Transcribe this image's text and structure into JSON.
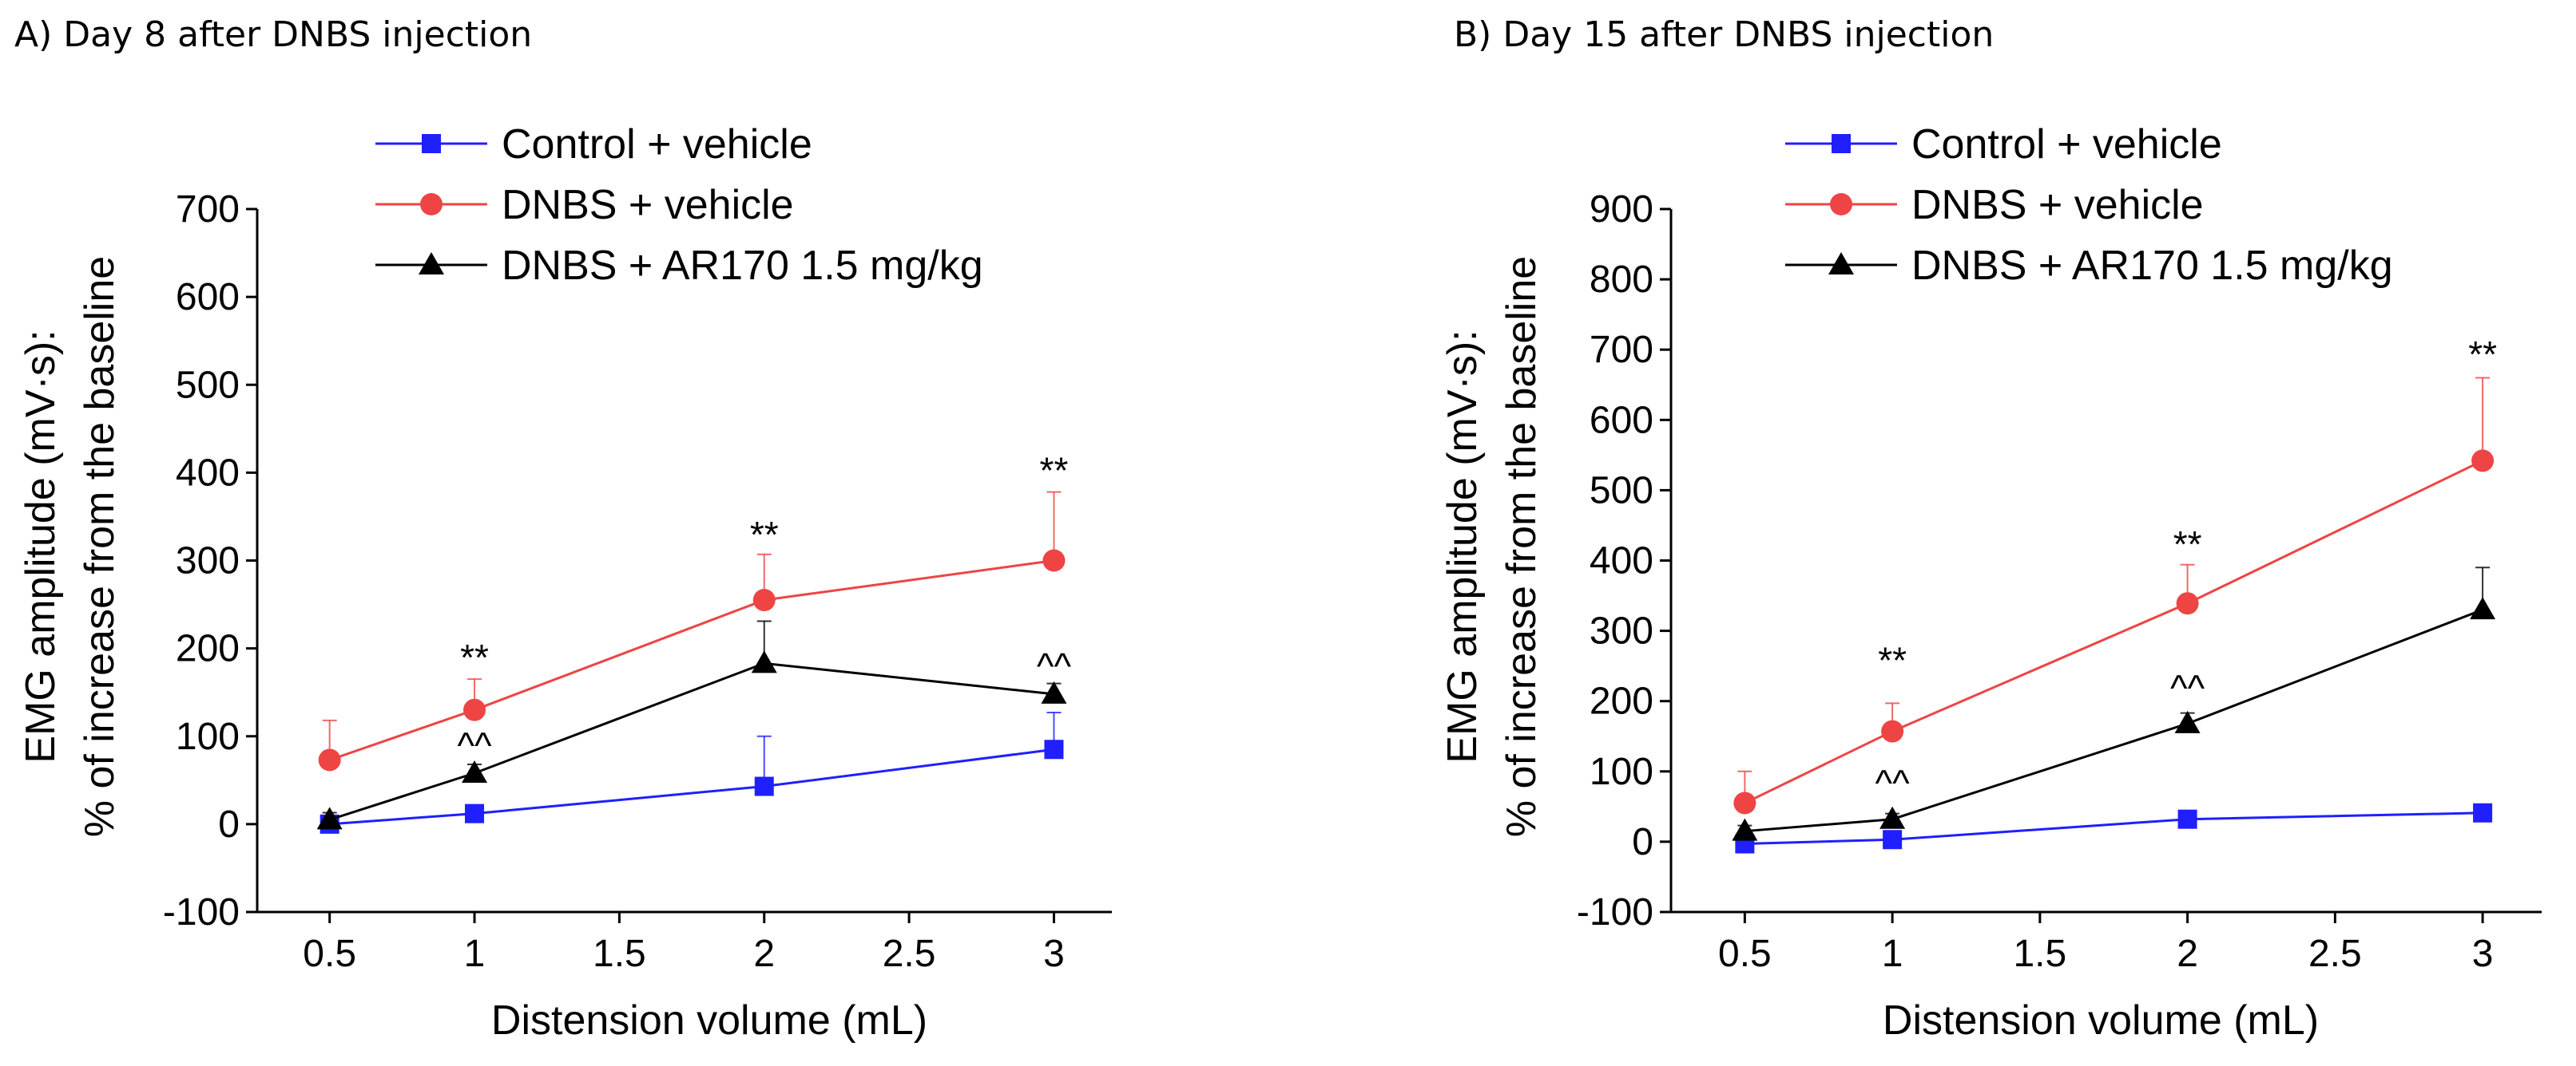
{
  "chart_data": [
    {
      "type": "line",
      "title": "A) Day 8 after DNBS injection",
      "xlabel": "Distension volume (mL)",
      "ylabel": "EMG amplitude (mV·s):",
      "ylabel2": "% of increase from the baseline",
      "x": [
        0.5,
        1,
        2,
        3
      ],
      "xticks": [
        "0.5",
        "1",
        "1.5",
        "2",
        "2.5",
        "3"
      ],
      "xtick_values": [
        0.5,
        1,
        1.5,
        2,
        2.5,
        3
      ],
      "xlim": [
        0.25,
        3.2
      ],
      "ylim": [
        -100,
        700
      ],
      "yticks": [
        "-100",
        "0",
        "100",
        "200",
        "300",
        "400",
        "500",
        "600",
        "700"
      ],
      "ytick_values": [
        -100,
        0,
        100,
        200,
        300,
        400,
        500,
        600,
        700
      ],
      "legend_position": "top",
      "series": [
        {
          "name": "Control + vehicle",
          "color": "#1f1fff",
          "marker": "square",
          "values": [
            0,
            12,
            43,
            85
          ],
          "errors": [
            5,
            5,
            57,
            42
          ]
        },
        {
          "name": "DNBS + vehicle",
          "color": "#ee4444",
          "marker": "circle",
          "values": [
            73,
            130,
            255,
            300
          ],
          "errors": [
            45,
            35,
            52,
            78
          ]
        },
        {
          "name": "DNBS + AR170 1.5 mg/kg",
          "color": "#000000",
          "marker": "triangle",
          "values": [
            5,
            58,
            183,
            148
          ],
          "errors": [
            8,
            10,
            48,
            12
          ]
        }
      ],
      "annotations": [
        {
          "text": "**",
          "x": 1,
          "y": 175
        },
        {
          "text": "**",
          "x": 2,
          "y": 315
        },
        {
          "text": "**",
          "x": 3,
          "y": 388
        },
        {
          "text": "^^",
          "x": 1,
          "y": 75
        },
        {
          "text": "^^",
          "x": 3,
          "y": 165
        }
      ]
    },
    {
      "type": "line",
      "title": "B) Day 15 after DNBS injection",
      "xlabel": "Distension volume (mL)",
      "ylabel": "EMG amplitude (mV·s):",
      "ylabel2": "% of increase from the baseline",
      "x": [
        0.5,
        1,
        2,
        3
      ],
      "xticks": [
        "0.5",
        "1",
        "1.5",
        "2",
        "2.5",
        "3"
      ],
      "xtick_values": [
        0.5,
        1,
        1.5,
        2,
        2.5,
        3
      ],
      "xlim": [
        0.25,
        3.2
      ],
      "ylim": [
        -100,
        900
      ],
      "yticks": [
        "-100",
        "0",
        "100",
        "200",
        "300",
        "400",
        "500",
        "600",
        "700",
        "800",
        "900"
      ],
      "ytick_values": [
        -100,
        0,
        100,
        200,
        300,
        400,
        500,
        600,
        700,
        800,
        900
      ],
      "legend_position": "top",
      "series": [
        {
          "name": "Control + vehicle",
          "color": "#1f1fff",
          "marker": "square",
          "values": [
            -3,
            3,
            32,
            41
          ],
          "errors": [
            5,
            5,
            5,
            5
          ]
        },
        {
          "name": "DNBS + vehicle",
          "color": "#ee4444",
          "marker": "circle",
          "values": [
            55,
            157,
            339,
            542
          ],
          "errors": [
            45,
            40,
            55,
            118
          ]
        },
        {
          "name": "DNBS + AR170 1.5 mg/kg",
          "color": "#000000",
          "marker": "triangle",
          "values": [
            15,
            32,
            168,
            330
          ],
          "errors": [
            8,
            8,
            15,
            60
          ]
        }
      ],
      "annotations": [
        {
          "text": "**",
          "x": 1,
          "y": 240
        },
        {
          "text": "**",
          "x": 2,
          "y": 405
        },
        {
          "text": "**",
          "x": 3,
          "y": 675
        },
        {
          "text": "^^",
          "x": 1,
          "y": 65
        },
        {
          "text": "^^",
          "x": 2,
          "y": 200
        }
      ]
    }
  ]
}
